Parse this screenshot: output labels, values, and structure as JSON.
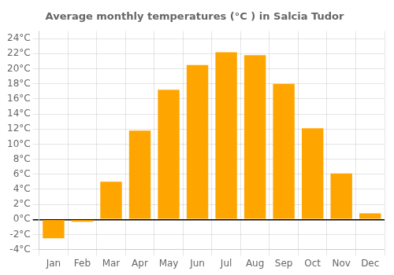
{
  "chart_data": {
    "type": "bar",
    "title": "Average monthly temperatures (°C ) in Salcia Tudor",
    "categories": [
      "Jan",
      "Feb",
      "Mar",
      "Apr",
      "May",
      "Jun",
      "Jul",
      "Aug",
      "Sep",
      "Oct",
      "Nov",
      "Dec"
    ],
    "values": [
      -2.5,
      -0.3,
      5.0,
      11.8,
      17.2,
      20.5,
      22.2,
      21.8,
      18.0,
      12.1,
      6.1,
      0.8
    ],
    "color": "#FFA500",
    "ylim": [
      -4,
      25
    ],
    "yticks": [
      {
        "value": -4,
        "label": "-4°C"
      },
      {
        "value": -2,
        "label": "-2°C"
      },
      {
        "value": 0,
        "label": "0°C"
      },
      {
        "value": 2,
        "label": "2°C"
      },
      {
        "value": 4,
        "label": "4°C"
      },
      {
        "value": 6,
        "label": "6°C"
      },
      {
        "value": 8,
        "label": "8°C"
      },
      {
        "value": 10,
        "label": "10°C"
      },
      {
        "value": 12,
        "label": "12°C"
      },
      {
        "value": 14,
        "label": "14°C"
      },
      {
        "value": 16,
        "label": "16°C"
      },
      {
        "value": 18,
        "label": "18°C"
      },
      {
        "value": 20,
        "label": "20°C"
      },
      {
        "value": 22,
        "label": "22°C"
      },
      {
        "value": 24,
        "label": "24°C"
      }
    ],
    "grid": true
  }
}
